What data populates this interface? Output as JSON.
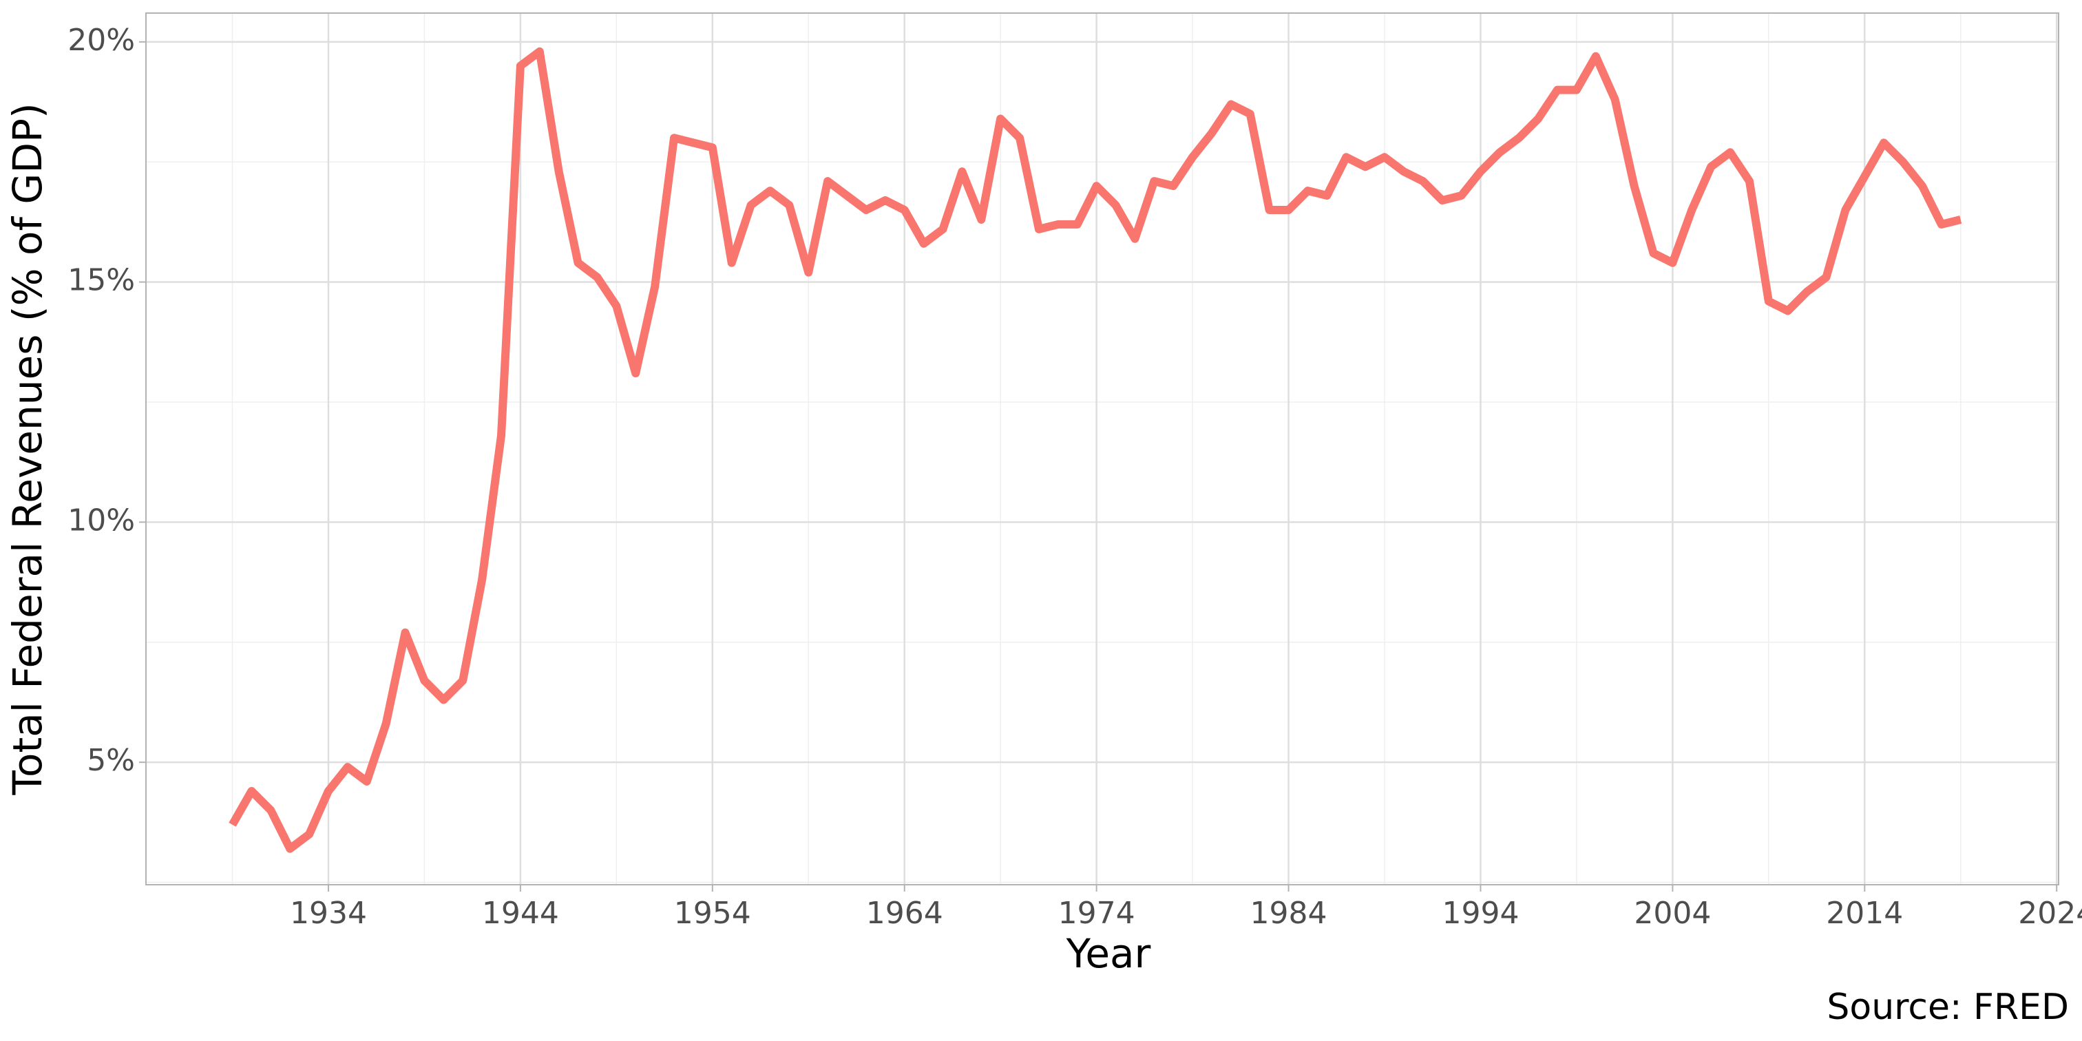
{
  "chart_data": {
    "type": "line",
    "x_label": "Year",
    "y_label": "Total Federal Revenues (% of GDP)",
    "caption": "Source: FRED",
    "x": [
      1929,
      1930,
      1931,
      1932,
      1933,
      1934,
      1935,
      1936,
      1937,
      1938,
      1939,
      1940,
      1941,
      1942,
      1943,
      1944,
      1945,
      1946,
      1947,
      1948,
      1949,
      1950,
      1951,
      1952,
      1953,
      1954,
      1955,
      1956,
      1957,
      1958,
      1959,
      1960,
      1961,
      1962,
      1963,
      1964,
      1965,
      1966,
      1967,
      1968,
      1969,
      1970,
      1971,
      1972,
      1973,
      1974,
      1975,
      1976,
      1977,
      1978,
      1979,
      1980,
      1981,
      1982,
      1983,
      1984,
      1985,
      1986,
      1987,
      1988,
      1989,
      1990,
      1991,
      1992,
      1993,
      1994,
      1995,
      1996,
      1997,
      1998,
      1999,
      2000,
      2001,
      2002,
      2003,
      2004,
      2005,
      2006,
      2007,
      2008,
      2009,
      2010,
      2011,
      2012,
      2013,
      2014,
      2015,
      2016,
      2017,
      2018,
      2019
    ],
    "series": [
      {
        "color": "#F8766D",
        "values": [
          3.7,
          4.4,
          4.0,
          3.2,
          3.5,
          4.4,
          4.9,
          4.6,
          5.8,
          7.7,
          6.7,
          6.3,
          6.7,
          8.8,
          11.8,
          19.5,
          19.8,
          17.3,
          15.4,
          15.1,
          14.5,
          13.1,
          14.9,
          18.0,
          17.9,
          17.8,
          15.4,
          16.6,
          16.9,
          16.6,
          15.2,
          17.1,
          16.8,
          16.5,
          16.7,
          16.5,
          15.8,
          16.1,
          17.3,
          16.3,
          18.4,
          18.0,
          16.1,
          16.2,
          16.2,
          17.0,
          16.6,
          15.9,
          17.1,
          17.0,
          17.6,
          18.1,
          18.7,
          18.5,
          16.5,
          16.5,
          16.9,
          16.8,
          17.6,
          17.4,
          17.6,
          17.3,
          17.1,
          16.7,
          16.8,
          17.3,
          17.7,
          18.0,
          18.4,
          19.0,
          19.0,
          19.7,
          18.8,
          17.0,
          15.6,
          15.4,
          16.5,
          17.4,
          17.7,
          17.1,
          14.6,
          14.4,
          14.8,
          15.1,
          16.5,
          17.2,
          17.9,
          17.5,
          17.0,
          16.2,
          16.3
        ]
      }
    ],
    "xlim": [
      1924.5,
      2024.1
    ],
    "ylim": [
      2.45,
      20.6
    ],
    "xticks": [
      1934,
      1944,
      1954,
      1964,
      1974,
      1984,
      1994,
      2004,
      2014,
      2024
    ],
    "yticks": [
      {
        "value": 5,
        "label": "5%"
      },
      {
        "value": 10,
        "label": "10%"
      },
      {
        "value": 15,
        "label": "15%"
      },
      {
        "value": 20,
        "label": "20%"
      }
    ],
    "x_minor_ticks": [
      1929,
      1939,
      1949,
      1959,
      1969,
      1979,
      1989,
      1999,
      2009,
      2019
    ],
    "y_minor_ticks": [
      2.5,
      7.5,
      12.5,
      17.5
    ],
    "grid": true
  }
}
